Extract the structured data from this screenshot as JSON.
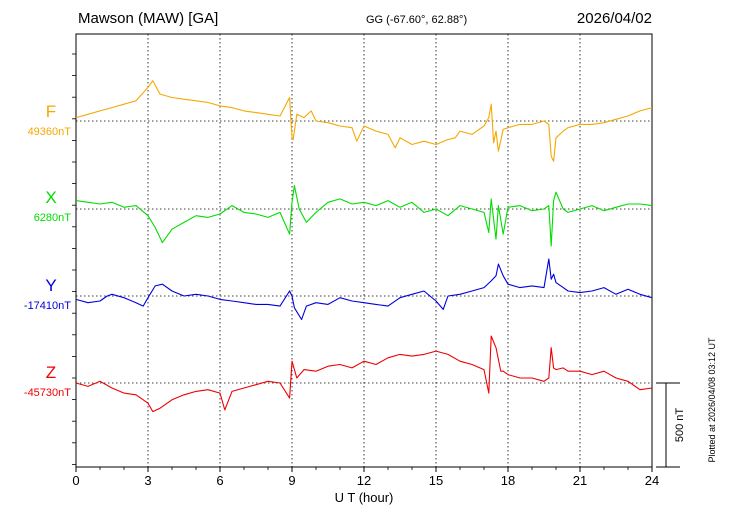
{
  "header": {
    "station": "Mawson (MAW)  [GA]",
    "coords": "GG (-67.60°,  62.88°)",
    "date": "2026/04/02"
  },
  "side_note": "Plotted at 2026/04/08 03:12 UT",
  "scale_label": "500 nT",
  "colors": {
    "F": "#f5a800",
    "X": "#00dd00",
    "Y": "#0000dd",
    "Z": "#ee0000",
    "axis": "#000000",
    "grid": "#000000"
  },
  "chart_data": {
    "type": "line",
    "xlabel": "U T (hour)",
    "xlim": [
      0,
      24
    ],
    "x_ticks": [
      0,
      3,
      6,
      9,
      12,
      15,
      18,
      21,
      24
    ],
    "x_tick_labels": [
      "0",
      "3",
      "6",
      "9",
      "12",
      "15",
      "18",
      "21",
      "24"
    ],
    "grid": true,
    "scale_bar_nT": 500,
    "series": [
      {
        "name": "F",
        "baseline_label": "49360nT",
        "baseline_nT": 49360,
        "x": [
          0,
          0.5,
          1,
          1.5,
          2,
          2.5,
          3,
          3.2,
          3.5,
          4,
          4.5,
          5,
          5.5,
          6,
          6.5,
          7,
          7.5,
          8,
          8.5,
          8.9,
          9,
          9.05,
          9.2,
          9.5,
          9.8,
          10,
          10.5,
          11,
          11.5,
          11.7,
          12,
          12.5,
          13,
          13.3,
          13.5,
          14,
          14.5,
          15,
          15.5,
          15.8,
          16,
          16.5,
          17,
          17.2,
          17.3,
          17.4,
          17.5,
          17.6,
          17.8,
          18,
          18.5,
          19,
          19.5,
          19.7,
          19.8,
          19.9,
          20,
          20.3,
          20.5,
          21,
          21.5,
          22,
          22.5,
          23,
          23.5,
          24
        ],
        "y": [
          49380,
          49400,
          49420,
          49440,
          49460,
          49480,
          49560,
          49600,
          49520,
          49500,
          49490,
          49480,
          49470,
          49450,
          49440,
          49420,
          49410,
          49400,
          49390,
          49500,
          49260,
          49250,
          49400,
          49380,
          49420,
          49360,
          49350,
          49330,
          49320,
          49240,
          49330,
          49300,
          49280,
          49200,
          49260,
          49220,
          49240,
          49220,
          49250,
          49260,
          49300,
          49280,
          49330,
          49380,
          49460,
          49230,
          49300,
          49180,
          49310,
          49320,
          49340,
          49340,
          49360,
          49340,
          49150,
          49120,
          49260,
          49300,
          49320,
          49340,
          49340,
          49350,
          49370,
          49390,
          49420,
          49440
        ]
      },
      {
        "name": "X",
        "baseline_label": "6280nT",
        "baseline_nT": 6280,
        "x": [
          0,
          0.5,
          1,
          1.5,
          2,
          2.5,
          3,
          3.3,
          3.6,
          4,
          4.5,
          5,
          5.5,
          6,
          6.5,
          7,
          7.5,
          8,
          8.5,
          8.9,
          9,
          9.1,
          9.3,
          9.6,
          10,
          10.5,
          11,
          11.5,
          12,
          12.5,
          13,
          13.5,
          14,
          14.5,
          15,
          15.5,
          16,
          16.5,
          17,
          17.2,
          17.3,
          17.5,
          17.6,
          17.8,
          18,
          18.5,
          19,
          19.5,
          19.7,
          19.8,
          19.9,
          20,
          20.3,
          20.5,
          21,
          21.5,
          22,
          22.5,
          23,
          23.5,
          24
        ],
        "y": [
          6330,
          6320,
          6310,
          6320,
          6290,
          6300,
          6240,
          6170,
          6080,
          6160,
          6200,
          6240,
          6230,
          6250,
          6300,
          6260,
          6250,
          6230,
          6260,
          6130,
          6320,
          6420,
          6280,
          6200,
          6260,
          6320,
          6340,
          6310,
          6320,
          6300,
          6330,
          6290,
          6320,
          6260,
          6280,
          6240,
          6300,
          6280,
          6260,
          6140,
          6340,
          6100,
          6300,
          6130,
          6290,
          6300,
          6270,
          6280,
          6300,
          6060,
          6330,
          6380,
          6280,
          6260,
          6280,
          6300,
          6270,
          6290,
          6310,
          6310,
          6300
        ]
      },
      {
        "name": "Y",
        "baseline_label": "-17410nT",
        "baseline_nT": -17410,
        "x": [
          0,
          0.5,
          1,
          1.3,
          1.5,
          2,
          2.5,
          2.8,
          3,
          3.3,
          3.6,
          4,
          4.5,
          5,
          5.5,
          6,
          6.5,
          7,
          7.5,
          8,
          8.5,
          8.9,
          9,
          9.1,
          9.4,
          9.6,
          10,
          10.5,
          11,
          11.5,
          12,
          12.5,
          13,
          13.5,
          14,
          14.5,
          15,
          15.3,
          15.5,
          16,
          16.5,
          17,
          17.3,
          17.5,
          17.6,
          17.8,
          18,
          18.5,
          19,
          19.5,
          19.7,
          19.8,
          19.9,
          20,
          20.3,
          20.5,
          21,
          21.5,
          22,
          22.5,
          23,
          23.5,
          24
        ],
        "y": [
          -17430,
          -17450,
          -17440,
          -17410,
          -17400,
          -17420,
          -17450,
          -17470,
          -17420,
          -17350,
          -17340,
          -17380,
          -17410,
          -17400,
          -17410,
          -17430,
          -17440,
          -17450,
          -17460,
          -17460,
          -17470,
          -17380,
          -17410,
          -17480,
          -17550,
          -17470,
          -17450,
          -17460,
          -17420,
          -17440,
          -17450,
          -17460,
          -17470,
          -17420,
          -17400,
          -17380,
          -17440,
          -17490,
          -17410,
          -17400,
          -17380,
          -17360,
          -17320,
          -17290,
          -17220,
          -17290,
          -17340,
          -17360,
          -17350,
          -17360,
          -17190,
          -17310,
          -17280,
          -17330,
          -17360,
          -17380,
          -17390,
          -17380,
          -17360,
          -17400,
          -17370,
          -17400,
          -17420
        ]
      },
      {
        "name": "Z",
        "baseline_label": "-45730nT",
        "baseline_nT": -45730,
        "x": [
          0,
          0.5,
          1,
          1.5,
          2,
          2.5,
          3,
          3.2,
          3.5,
          4,
          4.5,
          5,
          5.5,
          6,
          6.2,
          6.5,
          7,
          7.5,
          8,
          8.5,
          8.9,
          9,
          9.2,
          9.5,
          10,
          10.5,
          11,
          11.5,
          12,
          12.5,
          13,
          13.5,
          14,
          14.5,
          15,
          15.5,
          16,
          16.5,
          17,
          17.2,
          17.3,
          17.5,
          17.7,
          17.8,
          18,
          18.5,
          19,
          19.5,
          19.7,
          19.8,
          19.9,
          20,
          20.3,
          20.5,
          21,
          21.5,
          22,
          22.5,
          23,
          23.5,
          24
        ],
        "y": [
          -45730,
          -45750,
          -45720,
          -45760,
          -45790,
          -45800,
          -45850,
          -45900,
          -45880,
          -45830,
          -45800,
          -45780,
          -45770,
          -45790,
          -45890,
          -45780,
          -45760,
          -45740,
          -45720,
          -45730,
          -45820,
          -45600,
          -45700,
          -45650,
          -45660,
          -45630,
          -45620,
          -45640,
          -45600,
          -45620,
          -45580,
          -45560,
          -45570,
          -45560,
          -45540,
          -45560,
          -45600,
          -45620,
          -45650,
          -45790,
          -45450,
          -45520,
          -45660,
          -45660,
          -45680,
          -45700,
          -45700,
          -45720,
          -45700,
          -45520,
          -45640,
          -45650,
          -45640,
          -45660,
          -45660,
          -45680,
          -45660,
          -45700,
          -45720,
          -45770,
          -45760
        ]
      }
    ]
  }
}
